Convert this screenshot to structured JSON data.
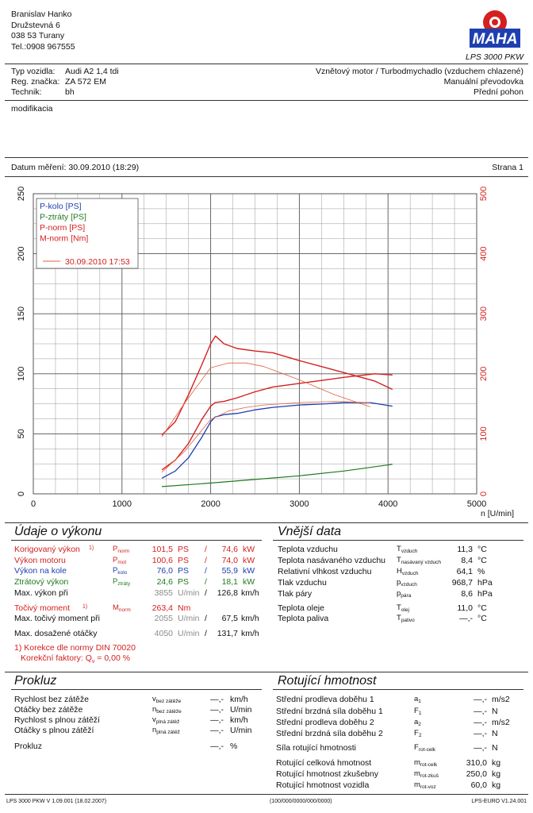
{
  "owner": {
    "name": "Branislav Hanko",
    "street": "Družstevná 6",
    "city": "038 53 Turany",
    "phone": "Tel.:0908 967555"
  },
  "brand": {
    "logo_text": "MAHA",
    "model": "LPS 3000 PKW"
  },
  "vehicle": {
    "type_label": "Typ vozidla:",
    "type_value": "Audi A2 1,4 tdi",
    "reg_label": "Reg. značka:",
    "reg_value": "ZA 572 EM",
    "tech_label": "Technik:",
    "tech_value": "bh",
    "engine": "Vznětový motor / Turbodmychadlo (vzduchem chlazené)",
    "gearbox": "Manuální převodovka",
    "drive": "Přední pohon"
  },
  "note": "modifikacia",
  "measure": {
    "date": "Datum měření: 30.09.2010 (18:29)",
    "page": "Strana 1"
  },
  "chart_data": {
    "type": "line",
    "xlabel": "n [U/min]",
    "xlim": [
      0,
      5000
    ],
    "ylim_left": [
      0,
      250
    ],
    "ylim_right": [
      0,
      500
    ],
    "x_ticks": [
      "0",
      "1000",
      "2000",
      "3000",
      "4000",
      "5000"
    ],
    "y_ticks_left": [
      "0",
      "50",
      "100",
      "150",
      "200",
      "250"
    ],
    "y_ticks_right": [
      "0",
      "100",
      "200",
      "300",
      "400",
      "500"
    ],
    "grid": true,
    "legend_position": "top-left",
    "legend": [
      "P-kolo [PS]",
      "P-ztráty [PS]",
      "P-norm [PS]",
      "M-norm [Nm]"
    ],
    "legend_date": "30.09.2010 17:53",
    "series": [
      {
        "name": "P-kolo [PS]",
        "axis": "left",
        "color": "#1d3fb0",
        "width": 1.3,
        "x": [
          1450,
          1600,
          1750,
          1900,
          2000,
          2050,
          2150,
          2300,
          2500,
          2700,
          3000,
          3300,
          3500,
          3800,
          4050
        ],
        "y": [
          13,
          19,
          30,
          47,
          60,
          64,
          66,
          67,
          70,
          72,
          74,
          75,
          76,
          76,
          73
        ]
      },
      {
        "name": "P-ztráty [PS]",
        "axis": "left",
        "color": "#1f7a1f",
        "width": 1.2,
        "x": [
          1450,
          2000,
          2500,
          3000,
          3500,
          4050
        ],
        "y": [
          6,
          9,
          12,
          15,
          19,
          24.6
        ]
      },
      {
        "name": "P-norm [PS]",
        "axis": "left",
        "color": "#d42020",
        "width": 1.4,
        "x": [
          1450,
          1600,
          1750,
          1900,
          2000,
          2050,
          2150,
          2300,
          2500,
          2700,
          3000,
          3300,
          3500,
          3855,
          4050
        ],
        "y": [
          20,
          28,
          42,
          62,
          73,
          76,
          77,
          80,
          85,
          89,
          92,
          95,
          97,
          100,
          99
        ]
      },
      {
        "name": "M-norm [Nm]",
        "axis": "right",
        "color": "#d42020",
        "width": 1.4,
        "x": [
          1450,
          1600,
          1750,
          1900,
          2000,
          2055,
          2150,
          2300,
          2500,
          2700,
          3000,
          3300,
          3600,
          3850,
          4050
        ],
        "y": [
          98,
          120,
          165,
          215,
          250,
          263,
          250,
          242,
          238,
          235,
          222,
          210,
          198,
          188,
          174
        ]
      },
      {
        "name": "P-norm [PS] (30.09.2010 17:53)",
        "axis": "left",
        "color": "#e06040",
        "width": 0.8,
        "x": [
          1450,
          1700,
          2000,
          2200,
          2400,
          2600,
          3000,
          3400,
          3800
        ],
        "y": [
          18,
          35,
          62,
          69,
          72,
          74,
          76,
          77,
          76
        ]
      },
      {
        "name": "M-norm [Nm] (30.09.2010 17:53)",
        "axis": "right",
        "color": "#e06040",
        "width": 0.8,
        "x": [
          1450,
          1700,
          2000,
          2200,
          2400,
          2600,
          3000,
          3400,
          3800
        ],
        "y": [
          95,
          150,
          210,
          218,
          218,
          212,
          190,
          165,
          145
        ]
      }
    ]
  },
  "power": {
    "title": "Údaje o výkonu",
    "rows": [
      {
        "label": "Korigovaný výkon",
        "note": "1)",
        "sym": "P",
        "sub": "norm",
        "v1": "101,5",
        "u1": "PS",
        "sep": "/",
        "v2": "74,6",
        "u2": "kW",
        "cls": "red"
      },
      {
        "label": "Výkon motoru",
        "note": "",
        "sym": "P",
        "sub": "mot",
        "v1": "100,6",
        "u1": "PS",
        "sep": "/",
        "v2": "74,0",
        "u2": "kW",
        "cls": "red"
      },
      {
        "label": "Výkon na kole",
        "note": "",
        "sym": "P",
        "sub": "kolo",
        "v1": "76,0",
        "u1": "PS",
        "sep": "/",
        "v2": "55,9",
        "u2": "kW",
        "cls": "blue"
      },
      {
        "label": "Ztrátový výkon",
        "note": "",
        "sym": "P",
        "sub": "ztráty",
        "v1": "24,6",
        "u1": "PS",
        "sep": "/",
        "v2": "18,1",
        "u2": "kW",
        "cls": "green"
      }
    ],
    "maxpower": {
      "label": "Max. výkon při",
      "rpm": "3855",
      "rpm_unit": "U/min",
      "sep": "/",
      "speed": "126,8",
      "speed_unit": "km/h"
    },
    "torque": {
      "label": "Točivý moment",
      "note": "1)",
      "sym": "M",
      "sub": "norm",
      "value": "263,4",
      "unit": "Nm"
    },
    "maxtorque": {
      "label": "Max. točivý moment při",
      "rpm": "2055",
      "rpm_unit": "U/min",
      "sep": "/",
      "speed": "67,5",
      "speed_unit": "km/h"
    },
    "maxrpm": {
      "label": "Max. dosažené otáčky",
      "rpm": "4050",
      "rpm_unit": "U/min",
      "sep": "/",
      "speed": "131,7",
      "speed_unit": "km/h"
    },
    "footnote": "1) Korekce dle normy DIN 70020",
    "factor_label": "Korekční faktory: Q",
    "factor_sub": "v",
    "factor_value": " =  0,00 %"
  },
  "external": {
    "title": "Vnější data",
    "rows": [
      {
        "label": "Teplota vzduchu",
        "sym": "T",
        "sub": "vzduch",
        "value": "11,3",
        "unit": "°C"
      },
      {
        "label": "Teplota nasávaného vzduchu",
        "sym": "T",
        "sub": "nasávaný vzduch",
        "value": "8,4",
        "unit": "°C"
      },
      {
        "label": "Relativní vlhkost vzduchu",
        "sym": "H",
        "sub": "vzduch",
        "value": "64,1",
        "unit": "%"
      },
      {
        "label": "Tlak vzduchu",
        "sym": "p",
        "sub": "vzduch",
        "value": "968,7",
        "unit": "hPa"
      },
      {
        "label": "Tlak páry",
        "sym": "p",
        "sub": "pára",
        "value": "8,6",
        "unit": "hPa"
      },
      {
        "label": "Teplota oleje",
        "sym": "T",
        "sub": "olej",
        "value": "11,0",
        "unit": "°C"
      },
      {
        "label": "Teplota paliva",
        "sym": "T",
        "sub": "palivo",
        "value": "—,-",
        "unit": "°C"
      }
    ]
  },
  "prokluz": {
    "title": "Prokluz",
    "rows": [
      {
        "label": "Rychlost bez zátěže",
        "sym": "v",
        "sub": "bez zátěže",
        "value": "—,-",
        "unit": "km/h"
      },
      {
        "label": "Otáčky bez zátěže",
        "sym": "n",
        "sub": "bez zátěže",
        "value": "—,-",
        "unit": "U/min"
      },
      {
        "label": "Rychlost s plnou zátěží",
        "sym": "v",
        "sub": "plná zátěž",
        "value": "—,-",
        "unit": "km/h"
      },
      {
        "label": "Otáčky s plnou zátěží",
        "sym": "n",
        "sub": "plná zátěž",
        "value": "—,-",
        "unit": "U/min"
      },
      {
        "label": "Prokluz",
        "sym": "",
        "sub": "",
        "value": "—,-",
        "unit": "%"
      }
    ]
  },
  "rotating": {
    "title": "Rotující hmotnost",
    "rows": [
      {
        "label": "Střední prodleva doběhu 1",
        "sym": "a",
        "sub": "1",
        "value": "—,-",
        "unit": "m/s2"
      },
      {
        "label": "Střední brzdná síla doběhu 1",
        "sym": "F",
        "sub": "1",
        "value": "—,-",
        "unit": "N"
      },
      {
        "label": "Střední prodleva doběhu 2",
        "sym": "a",
        "sub": "2",
        "value": "—,-",
        "unit": "m/s2"
      },
      {
        "label": "Střední brzdná síla doběhu 2",
        "sym": "F",
        "sub": "2",
        "value": "—,-",
        "unit": "N"
      },
      {
        "label": "Síla rotující hmotnosti",
        "sym": "F",
        "sub": "rot-celk",
        "value": "—,-",
        "unit": "N"
      },
      {
        "label": "Rotující celková hmotnost",
        "sym": "m",
        "sub": "rot-celk",
        "value": "310,0",
        "unit": "kg"
      },
      {
        "label": "Rotující hmotnost zkušebny",
        "sym": "m",
        "sub": "rot-zkuš",
        "value": "250,0",
        "unit": "kg"
      },
      {
        "label": "Rotující hmotnost vozidla",
        "sym": "m",
        "sub": "rot-voz",
        "value": "60,0",
        "unit": "kg"
      }
    ]
  },
  "footer": {
    "left": "LPS 3000 PKW V 1.09.001 (18.02.2007)",
    "center": "(100/000/0000/000/0000)",
    "right": "LPS-EURO V1.24.001"
  }
}
